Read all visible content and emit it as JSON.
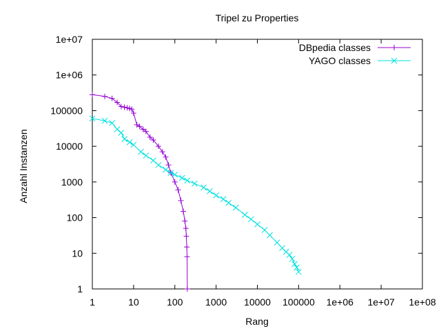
{
  "chart_data": {
    "type": "line",
    "title": "Tripel zu Properties",
    "xlabel": "Rang",
    "ylabel": "Anzahl Instanzen",
    "xscale": "log",
    "yscale": "log",
    "xlim": [
      1,
      100000000
    ],
    "ylim": [
      1,
      10000000
    ],
    "x_ticks": [
      "1",
      "10",
      "100",
      "1000",
      "10000",
      "100000",
      "1e+06",
      "1e+07",
      "1e+08"
    ],
    "y_ticks": [
      "1",
      "10",
      "100",
      "1000",
      "10000",
      "100000",
      "1e+06",
      "1e+07"
    ],
    "legend_position": "top-right",
    "grid": false,
    "series": [
      {
        "name": "DBpedia classes",
        "color": "#9400d3",
        "marker": "plus",
        "x": [
          1,
          2,
          3,
          4,
          5,
          6,
          7,
          8,
          9,
          10,
          12,
          14,
          17,
          20,
          25,
          30,
          40,
          50,
          60,
          70,
          80,
          100,
          120,
          140,
          160,
          175,
          185,
          190,
          195,
          198,
          200
        ],
        "y": [
          280000,
          250000,
          220000,
          170000,
          130000,
          125000,
          120000,
          115000,
          110000,
          85000,
          40000,
          36000,
          30000,
          26000,
          18000,
          15000,
          10000,
          7000,
          5000,
          3000,
          1800,
          1000,
          600,
          300,
          150,
          80,
          50,
          30,
          15,
          8,
          1
        ]
      },
      {
        "name": "YAGO classes",
        "color": "#00e0e0",
        "marker": "cross",
        "x": [
          1,
          2,
          3,
          4,
          5,
          6,
          8,
          10,
          15,
          20,
          30,
          40,
          60,
          80,
          100,
          150,
          200,
          300,
          500,
          700,
          1000,
          1500,
          2000,
          3000,
          5000,
          7000,
          10000,
          15000,
          20000,
          30000,
          40000,
          50000,
          60000,
          70000,
          80000,
          90000,
          100000
        ],
        "y": [
          60000,
          52000,
          45000,
          30000,
          24000,
          16000,
          13000,
          11000,
          7000,
          5500,
          4000,
          3000,
          2200,
          1800,
          1600,
          1300,
          1100,
          900,
          700,
          550,
          420,
          330,
          260,
          190,
          120,
          90,
          65,
          45,
          32,
          20,
          14,
          11,
          9,
          7,
          5,
          4,
          3
        ]
      }
    ]
  }
}
